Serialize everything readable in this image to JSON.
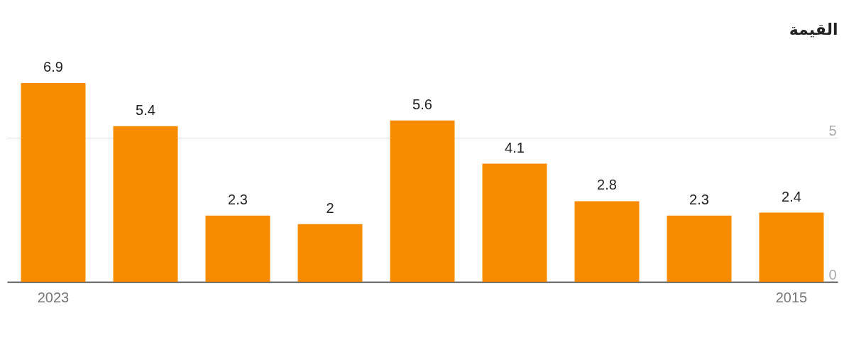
{
  "chart_data": {
    "type": "bar",
    "ylabel": "القيمة",
    "categories": [
      "2023",
      null,
      null,
      null,
      null,
      null,
      null,
      null,
      "2015"
    ],
    "values": [
      6.9,
      5.4,
      2.3,
      2,
      5.6,
      4.1,
      2.8,
      2.3,
      2.4
    ],
    "color": "#f68b00",
    "ylim": [
      0,
      6.9
    ],
    "yticks": [
      0,
      5
    ],
    "grid": "y",
    "data_labels": true
  }
}
